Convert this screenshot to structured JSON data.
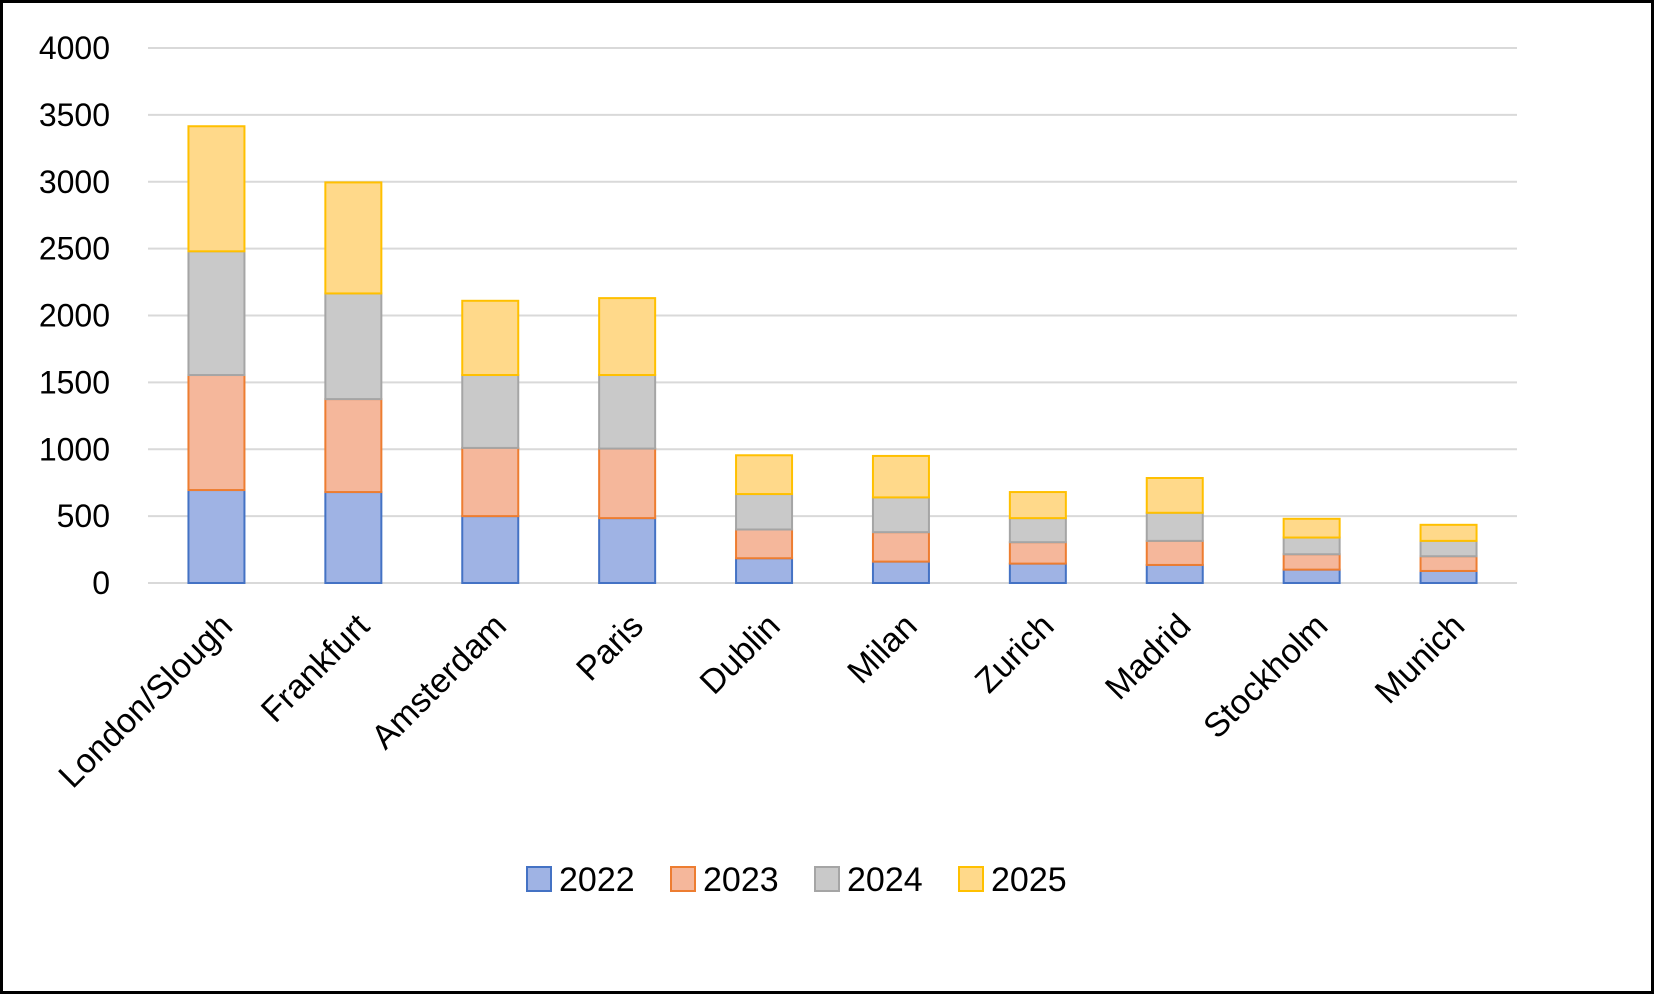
{
  "chart_data": {
    "type": "bar",
    "stacked": true,
    "title": "",
    "xlabel": "",
    "ylabel": "",
    "ylim": [
      0,
      4000
    ],
    "yticks": [
      0,
      500,
      1000,
      1500,
      2000,
      2500,
      3000,
      3500,
      4000
    ],
    "grid": true,
    "legend_position": "bottom",
    "categories": [
      "London/Slough",
      "Frankfurt",
      "Amsterdam",
      "Paris",
      "Dublin",
      "Milan",
      "Zurich",
      "Madrid",
      "Stockholm",
      "Munich"
    ],
    "series": [
      {
        "name": "2022",
        "fill": "#9fb3e4",
        "stroke": "#4472c4",
        "values": [
          695,
          680,
          500,
          485,
          185,
          160,
          145,
          135,
          100,
          90
        ]
      },
      {
        "name": "2023",
        "fill": "#f5b79b",
        "stroke": "#ed7d31",
        "values": [
          860,
          695,
          510,
          520,
          215,
          220,
          160,
          180,
          115,
          110
        ]
      },
      {
        "name": "2024",
        "fill": "#c9c9c9",
        "stroke": "#a5a5a5",
        "values": [
          925,
          790,
          545,
          550,
          265,
          260,
          180,
          210,
          125,
          115
        ]
      },
      {
        "name": "2025",
        "fill": "#ffd98a",
        "stroke": "#ffc000",
        "values": [
          935,
          830,
          555,
          575,
          290,
          310,
          195,
          260,
          140,
          120
        ]
      }
    ]
  }
}
